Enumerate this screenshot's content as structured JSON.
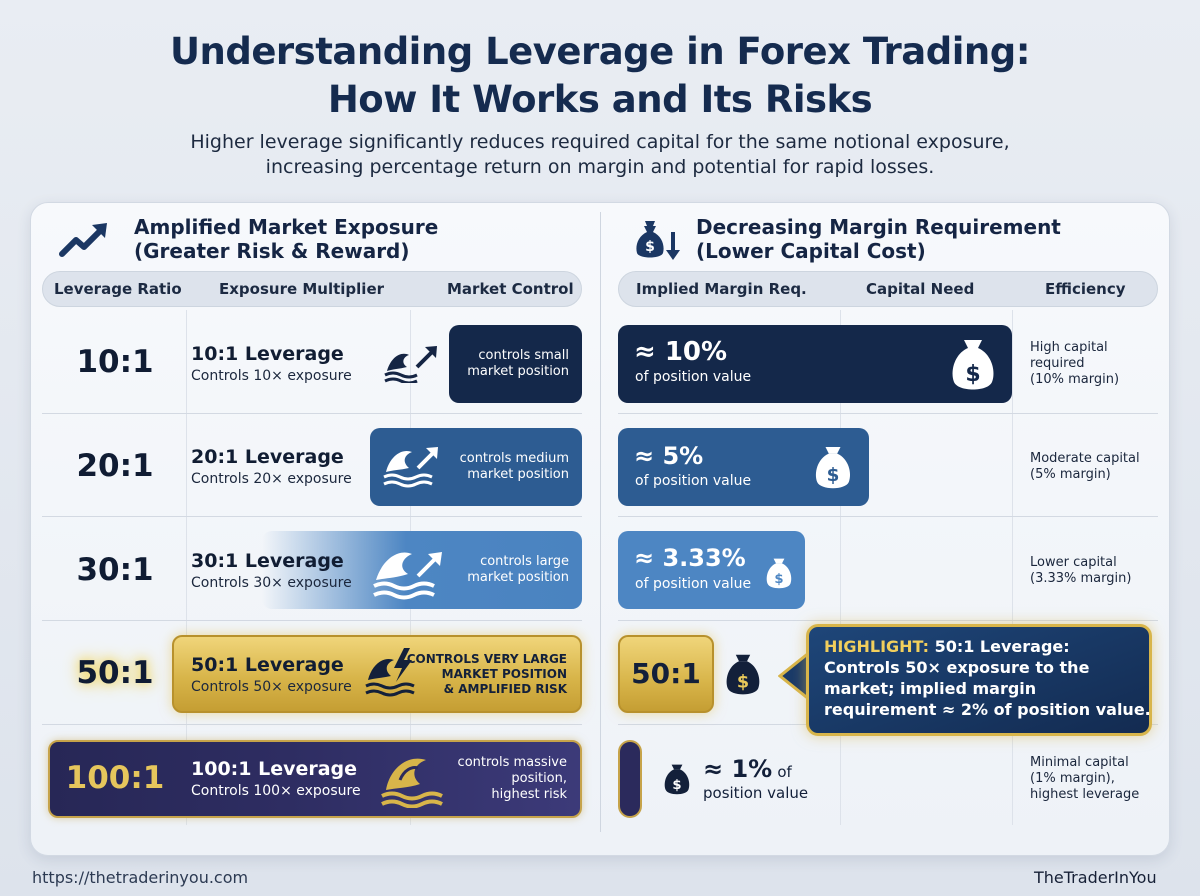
{
  "title": {
    "line1": "Understanding Leverage in Forex Trading:",
    "line2": "How It Works and Its Risks"
  },
  "subtitle": {
    "line1": "Higher leverage significantly reduces required capital for the same notional exposure,",
    "line2": "increasing percentage return on margin and potential for rapid losses."
  },
  "left_section": {
    "icon": "trend-up-arrow-icon",
    "title_line1": "Amplified Market Exposure",
    "title_line2": "(Greater Risk & Reward)",
    "columns": [
      "Leverage Ratio",
      "Exposure Multiplier",
      "Market Control"
    ]
  },
  "right_section": {
    "icon": "money-bag-down-arrow-icon",
    "title_line1": "Decreasing Margin Requirement",
    "title_line2": "(Lower Capital Cost)",
    "columns": [
      "Implied Margin Req.",
      "Capital Need",
      "Efficiency"
    ]
  },
  "rows": [
    {
      "ratio": "10:1",
      "lev_title": "10:1 Leverage",
      "lev_sub": "Controls 10× exposure",
      "control_line1": "controls small",
      "control_line2": "market position",
      "control_line3": "",
      "margin_pct": "≈ 10%",
      "margin_of": "of position value",
      "margin_value": 10,
      "eff_line1": "High capital",
      "eff_line2": "required",
      "eff_line3": "(10% margin)"
    },
    {
      "ratio": "20:1",
      "lev_title": "20:1 Leverage",
      "lev_sub": "Controls 20× exposure",
      "control_line1": "controls medium",
      "control_line2": "market position",
      "control_line3": "",
      "margin_pct": "≈ 5%",
      "margin_of": "of position value",
      "margin_value": 5,
      "eff_line1": "Moderate capital",
      "eff_line2": "(5% margin)",
      "eff_line3": ""
    },
    {
      "ratio": "30:1",
      "lev_title": "30:1 Leverage",
      "lev_sub": "Controls 30× exposure",
      "control_line1": "controls large",
      "control_line2": "market position",
      "control_line3": "",
      "margin_pct": "≈ 3.33%",
      "margin_of": "of position value",
      "margin_value": 3.33,
      "eff_line1": "Lower capital",
      "eff_line2": "(3.33% margin)",
      "eff_line3": ""
    },
    {
      "ratio": "50:1",
      "lev_title": "50:1 Leverage",
      "lev_sub": "Controls 50× exposure",
      "control_line1": "CONTROLS VERY LARGE",
      "control_line2": "MARKET POSITION",
      "control_line3": "& AMPLIFIED RISK",
      "margin_ratio": "50:1",
      "highlight_label": "HIGHLIGHT:",
      "highlight_line1": "50:1 Leverage:",
      "highlight_line2": "Controls 50× exposure to the",
      "highlight_line3": "market; implied margin",
      "highlight_line4": "requirement ≈ 2% of position value."
    },
    {
      "ratio": "100:1",
      "lev_title": "100:1 Leverage",
      "lev_sub": "Controls 100× exposure",
      "control_line1": "controls massive",
      "control_line2": "position,",
      "control_line3": "highest risk",
      "margin_pct": "≈ 1%",
      "margin_of_inline": "of",
      "margin_of": "position value",
      "margin_value": 1,
      "eff_line1": "Minimal capital",
      "eff_line2": "(1% margin),",
      "eff_line3": "highest leverage"
    }
  ],
  "footer": {
    "url": "https://thetraderinyou.com",
    "brand": "TheTraderInYou"
  },
  "colors": {
    "navy": "#132748",
    "blue": "#2f5f96",
    "light_blue": "#4d86c3",
    "gold": "#d8b54a",
    "purple": "#2b2a5c"
  }
}
